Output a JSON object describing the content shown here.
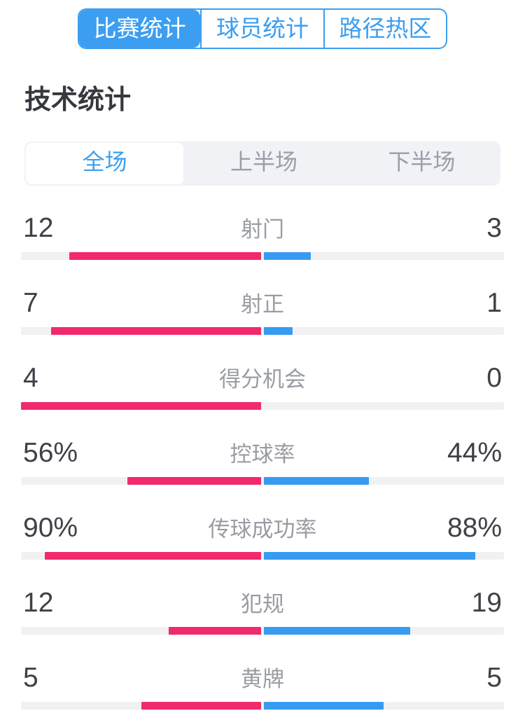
{
  "colors": {
    "accent": "#3c9ef0",
    "bar_pink": "#f02a6c",
    "bar_blue": "#389bf2",
    "track_gray": "#f1f1f4",
    "label_gray": "#999ca3",
    "value_dark": "#3f4147",
    "segment_bg": "#f1f2f6",
    "segment_inactive": "#9a9ea8"
  },
  "tabs": [
    {
      "label": "比赛统计",
      "selected": true
    },
    {
      "label": "球员统计",
      "selected": false
    },
    {
      "label": "路径热区",
      "selected": false
    }
  ],
  "page_title": "技术统计",
  "period_tabs": [
    {
      "label": "全场",
      "selected": true
    },
    {
      "label": "上半场",
      "selected": false
    },
    {
      "label": "下半场",
      "selected": false
    }
  ],
  "chart_data": {
    "type": "bar",
    "title": "技术统计",
    "legend_note": "left=home(pink) right=away(blue), bars grow outward from center",
    "stats": [
      {
        "label": "射门",
        "left": "12",
        "right": "3",
        "left_frac": 0.8,
        "right_frac": 0.2
      },
      {
        "label": "射正",
        "left": "7",
        "right": "1",
        "left_frac": 0.875,
        "right_frac": 0.125
      },
      {
        "label": "得分机会",
        "left": "4",
        "right": "0",
        "left_frac": 1.0,
        "right_frac": 0.0
      },
      {
        "label": "控球率",
        "left": "56%",
        "right": "44%",
        "left_frac": 0.56,
        "right_frac": 0.44
      },
      {
        "label": "传球成功率",
        "left": "90%",
        "right": "88%",
        "left_frac": 0.9,
        "right_frac": 0.88
      },
      {
        "label": "犯规",
        "left": "12",
        "right": "19",
        "left_frac": 0.387,
        "right_frac": 0.613
      },
      {
        "label": "黄牌",
        "left": "5",
        "right": "5",
        "left_frac": 0.5,
        "right_frac": 0.5
      }
    ]
  }
}
